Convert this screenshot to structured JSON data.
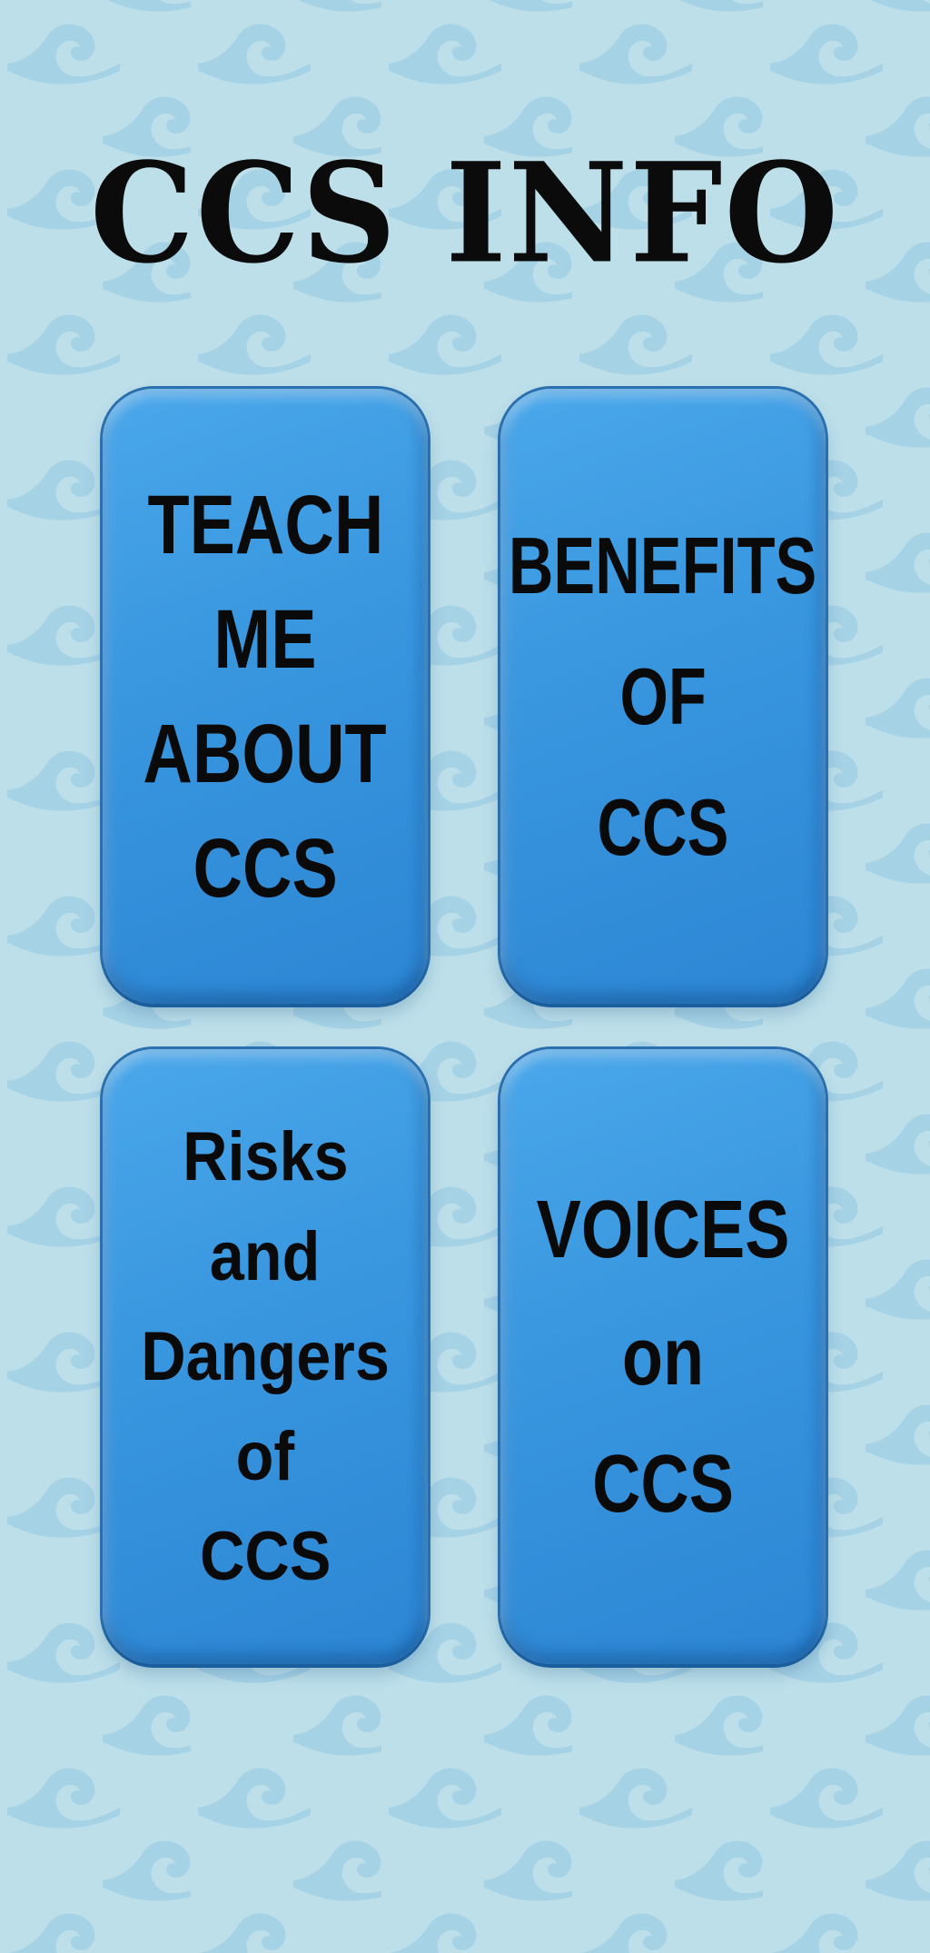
{
  "page": {
    "title": "CCS INFO"
  },
  "colors": {
    "background": "#bcdfea",
    "pattern": "#a3cfe3",
    "card_fill": "#3896df",
    "card_border": "#2a6fae",
    "text": "#0a0a0a"
  },
  "background": {
    "pattern_icon": "wave-icon"
  },
  "cards": [
    {
      "id": "teach",
      "lines": [
        "TEACH",
        "ME",
        "ABOUT",
        "CCS"
      ]
    },
    {
      "id": "benefits",
      "lines": [
        "BENEFITS",
        "OF",
        "CCS"
      ]
    },
    {
      "id": "risks",
      "lines": [
        "Risks",
        "and",
        "Dangers",
        "of",
        "CCS"
      ]
    },
    {
      "id": "voices",
      "lines": [
        "VOICES",
        "on",
        "CCS"
      ]
    }
  ]
}
